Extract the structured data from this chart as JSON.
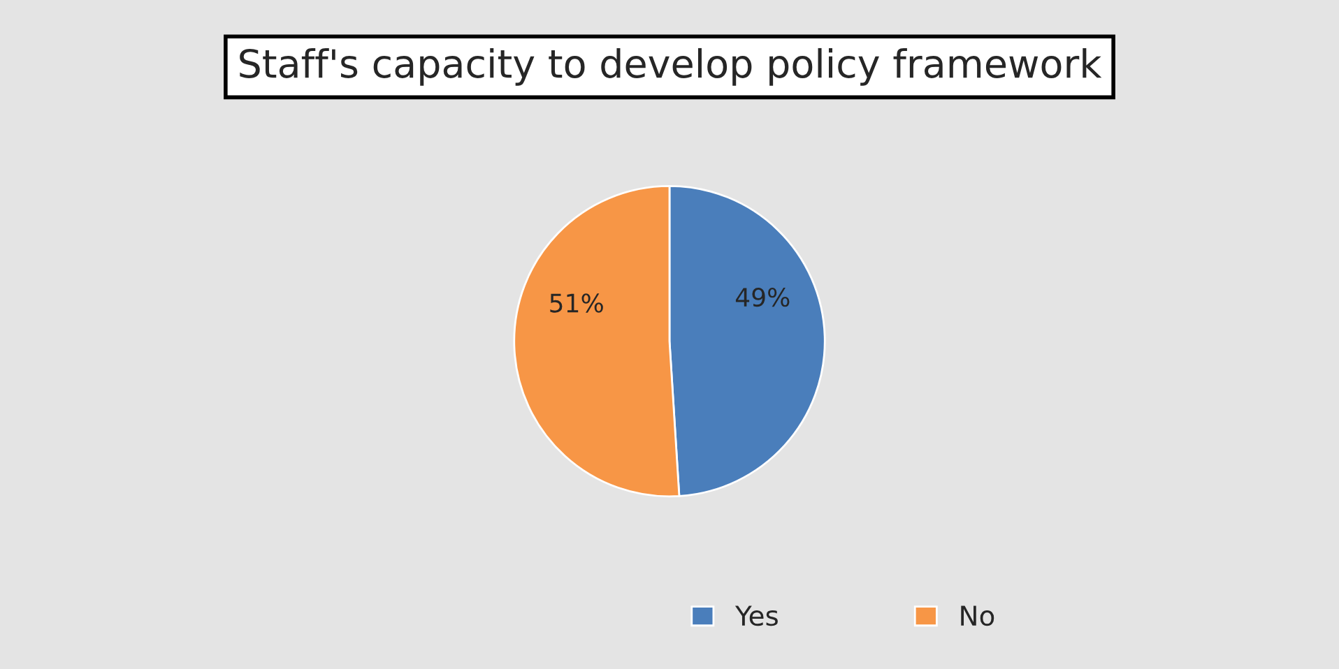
{
  "chart_data": {
    "type": "pie",
    "title": "Staff's capacity to develop policy framework",
    "categories": [
      "Yes",
      "No"
    ],
    "values": [
      49,
      51
    ],
    "colors": [
      "#4a7ebb",
      "#f79646"
    ],
    "value_labels": [
      "49%",
      "51%"
    ],
    "legend": "bottom"
  }
}
